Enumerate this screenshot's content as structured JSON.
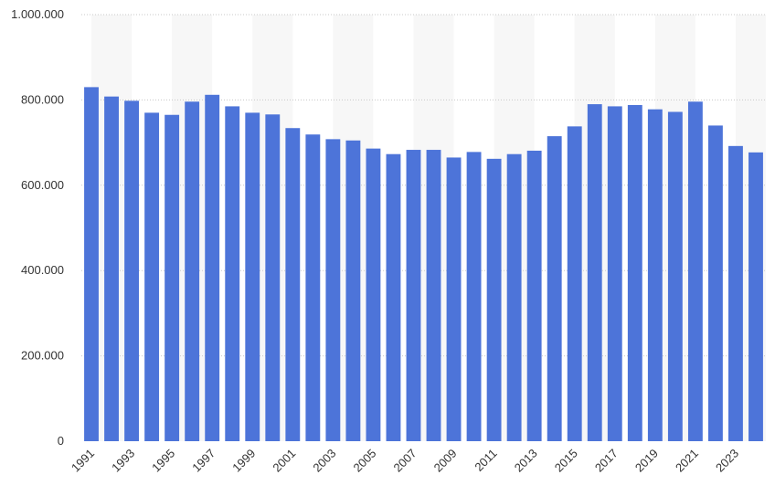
{
  "chart_data": {
    "type": "bar",
    "title": "",
    "xlabel": "",
    "ylabel": "",
    "ylim": [
      0,
      1000000
    ],
    "grid": true,
    "legend": "none",
    "categories": [
      1991,
      1992,
      1993,
      1994,
      1995,
      1996,
      1997,
      1998,
      1999,
      2000,
      2001,
      2002,
      2003,
      2004,
      2005,
      2006,
      2007,
      2008,
      2009,
      2010,
      2011,
      2012,
      2013,
      2014,
      2015,
      2016,
      2017,
      2018,
      2019,
      2020,
      2021,
      2022,
      2023,
      2024
    ],
    "x_tick_labels": [
      "1991",
      "1993",
      "1995",
      "1997",
      "1999",
      "2001",
      "2003",
      "2005",
      "2007",
      "2009",
      "2011",
      "2013",
      "2015",
      "2017",
      "2019",
      "2021",
      "2023"
    ],
    "y_ticks": [
      0,
      200000,
      400000,
      600000,
      800000,
      1000000
    ],
    "y_tick_labels": [
      "0",
      "200.000",
      "400.000",
      "600.000",
      "800.000",
      "1.000.000"
    ],
    "values": [
      830000,
      808000,
      798000,
      770000,
      765000,
      796000,
      812000,
      785000,
      770000,
      766000,
      734000,
      719000,
      708000,
      705000,
      686000,
      673000,
      683000,
      683000,
      665000,
      678000,
      662000,
      673000,
      681000,
      715000,
      738000,
      790000,
      785000,
      788000,
      778000,
      772000,
      796000,
      740000,
      692000,
      677000
    ],
    "bar_color": "#4d74d9"
  }
}
